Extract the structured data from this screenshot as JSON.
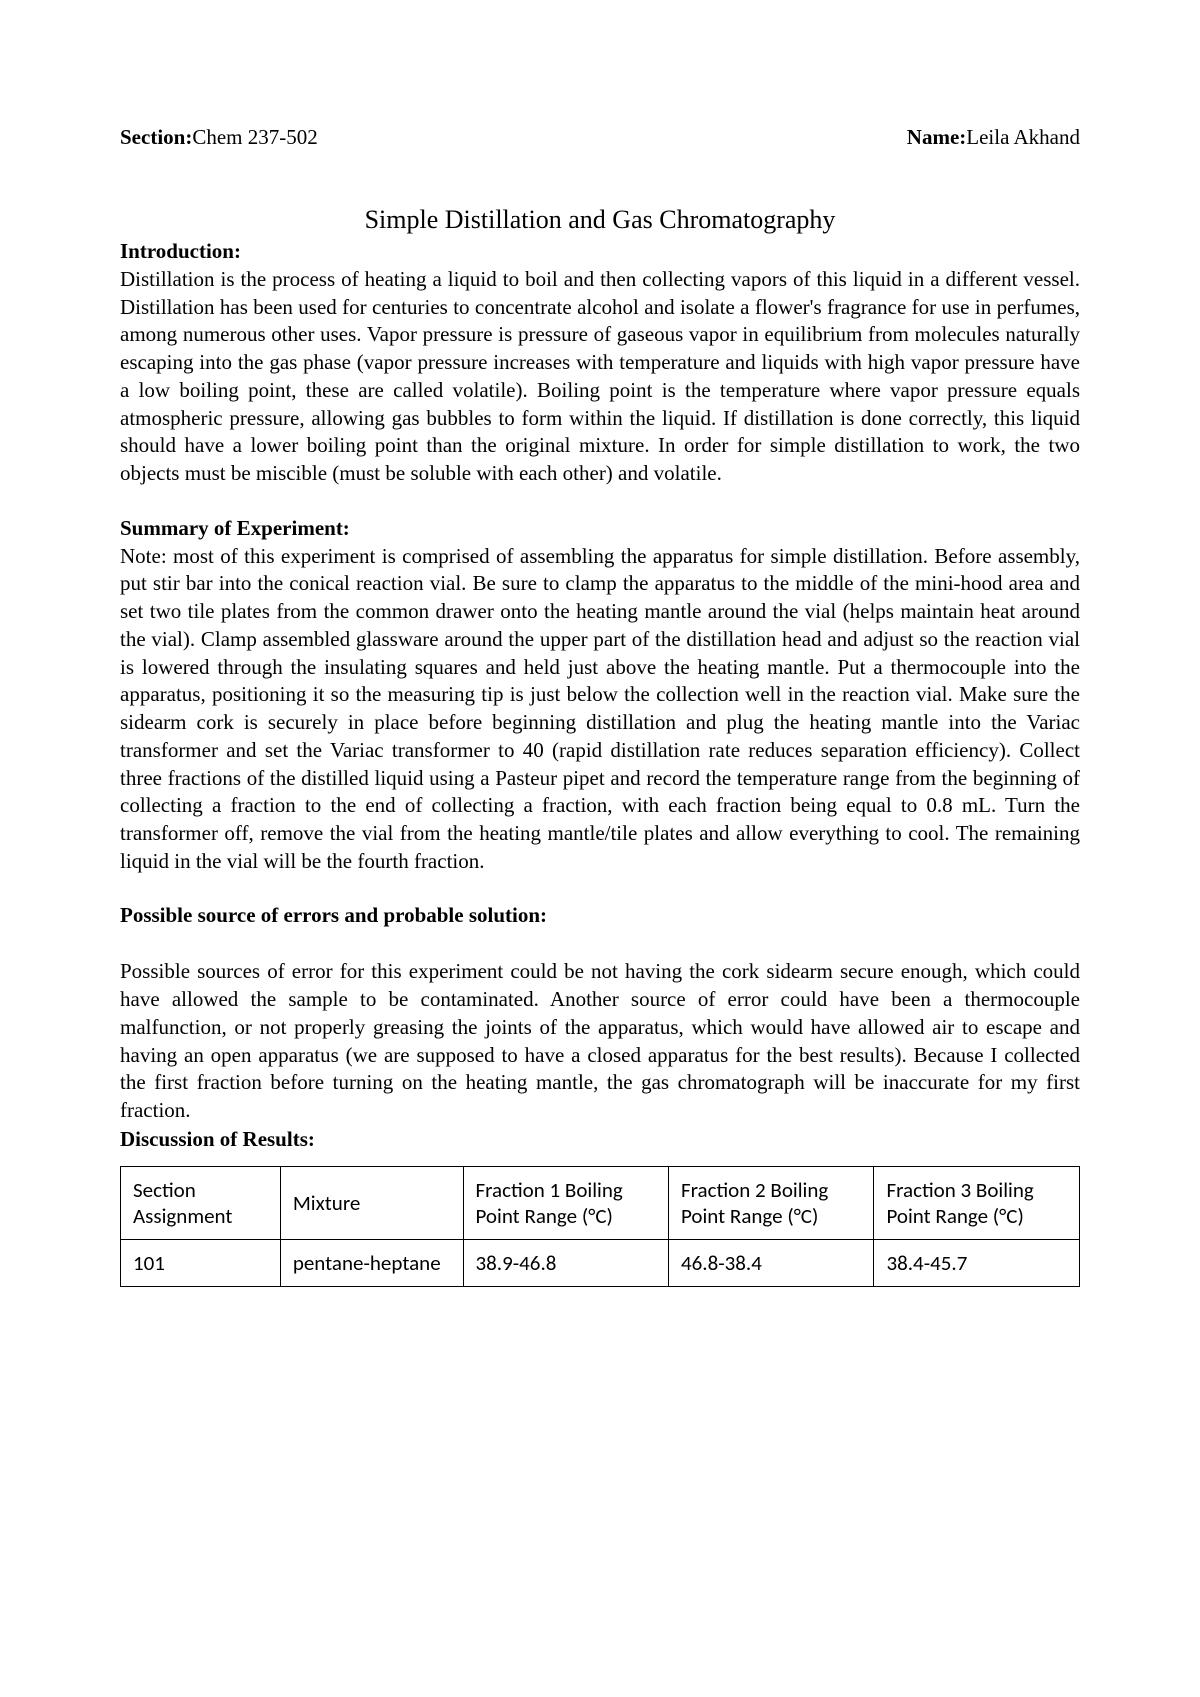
{
  "header": {
    "section_label": "Section: ",
    "section_value": "Chem 237-502",
    "name_label": "Name: ",
    "name_value": "Leila Akhand"
  },
  "title": "Simple Distillation  and Gas Chromatography",
  "intro": {
    "heading": "Introduction:",
    "body": "Distillation is the process of heating a liquid to boil and then collecting vapors of this liquid in a different vessel. Distillation has been used for centuries to concentrate alcohol and isolate a flower's fragrance for use in perfumes, among numerous other uses. Vapor pressure is pressure of gaseous vapor in equilibrium from molecules naturally escaping into the gas phase (vapor pressure increases with temperature and liquids with high vapor pressure have a low boiling point, these are called volatile). Boiling point is the temperature where vapor pressure equals atmospheric pressure, allowing gas bubbles to form within the liquid. If distillation is done correctly, this liquid should  have a lower boiling point than the original mixture. In order for simple distillation to work, the two objects must be miscible (must be soluble with each other) and volatile."
  },
  "summary": {
    "heading": "Summary of Experiment:",
    "body": "Note: most of this experiment is comprised of assembling the apparatus for simple distillation. Before assembly, put stir bar into the conical reaction vial. Be sure to clamp the apparatus to the middle of the mini-hood area and set two tile plates from the common drawer onto the heating mantle around the vial (helps maintain heat around the vial). Clamp assembled glassware around the upper part of the distillation head and adjust so the reaction vial is lowered through the insulating squares and held just above the heating mantle. Put a thermocouple into the apparatus, positioning it so the measuring tip is just below the collection well in the reaction vial. Make sure the sidearm cork is securely in place before beginning distillation and plug the heating mantle into the Variac transformer and set the Variac transformer to 40 (rapid distillation rate reduces separation efficiency). Collect three fractions of the distilled liquid using a Pasteur pipet and record the temperature range from the beginning of collecting a fraction to the end of collecting a fraction, with each fraction being equal to 0.8 mL. Turn the transformer off, remove the vial from the heating mantle/tile plates and allow everything to cool. The remaining liquid in the vial will be the fourth fraction."
  },
  "errors": {
    "heading": "Possible source of errors and probable solution:",
    "body": "Possible sources of error for this experiment could be not having the cork sidearm secure enough, which could have allowed the sample to be contaminated. Another source of error could have been a thermocouple malfunction, or not properly greasing the joints of the apparatus, which would have allowed air to escape and having an open apparatus (we are supposed to have a closed apparatus for the best results). Because I collected the first fraction before turning on the heating mantle, the gas chromatograph will be inaccurate for my first fraction."
  },
  "discussion": {
    "heading": "Discussion of Results:"
  },
  "table": {
    "columns": [
      "Section Assignment",
      "Mixture",
      "Fraction 1 Boiling Point Range (°C)",
      "Fraction 2 Boiling Point Range (°C)",
      "Fraction 3 Boiling Point Range (°C)"
    ],
    "rows": [
      [
        "101",
        "pentane-heptane",
        "38.9-46.8",
        "46.8-38.4",
        "38.4-45.7"
      ]
    ]
  }
}
